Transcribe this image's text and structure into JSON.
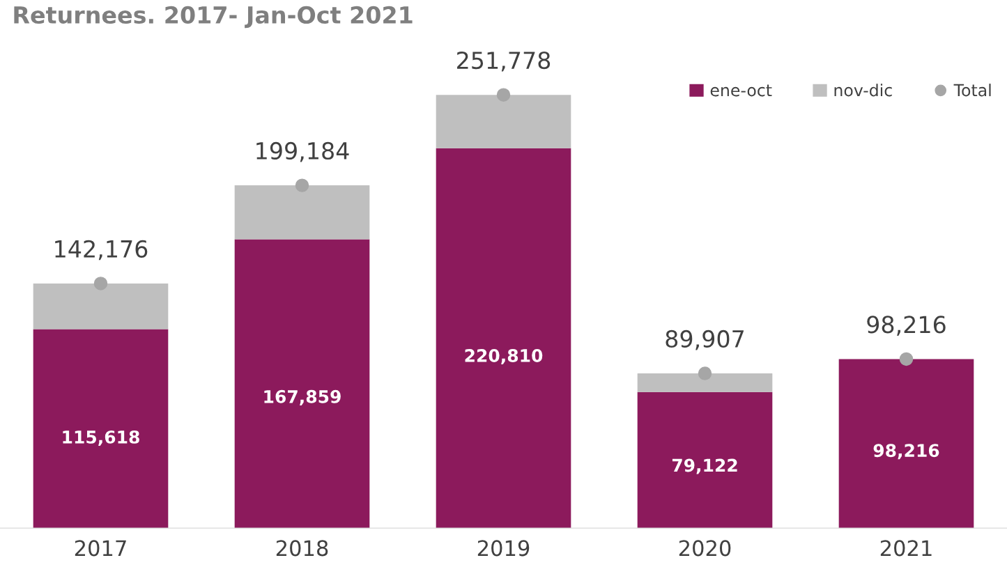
{
  "chart_data": {
    "type": "bar",
    "title": "Returnees. 2017- Jan-Oct 2021",
    "categories": [
      "2017",
      "2018",
      "2019",
      "2020",
      "2021"
    ],
    "stacked": true,
    "legend": "top right",
    "tick_labels": "x",
    "series": [
      {
        "name": "ene-oct",
        "color": "#8c1a5c",
        "values": [
          115618,
          167859,
          220810,
          79122,
          98216
        ],
        "value_labels": [
          "115,618",
          "167,859",
          "220,810",
          "79,122",
          "98,216"
        ]
      },
      {
        "name": "nov-dic",
        "color": "#bfbfbf",
        "values": [
          26558,
          31325,
          30968,
          10785,
          null
        ]
      },
      {
        "name": "Total",
        "type": "scatter",
        "color": "#a6a6a6",
        "marker": "circle",
        "values": [
          142176,
          199184,
          251778,
          89907,
          98216
        ],
        "value_labels": [
          "142,176",
          "199,184",
          "251,778",
          "89,907",
          "98,216"
        ]
      }
    ]
  }
}
